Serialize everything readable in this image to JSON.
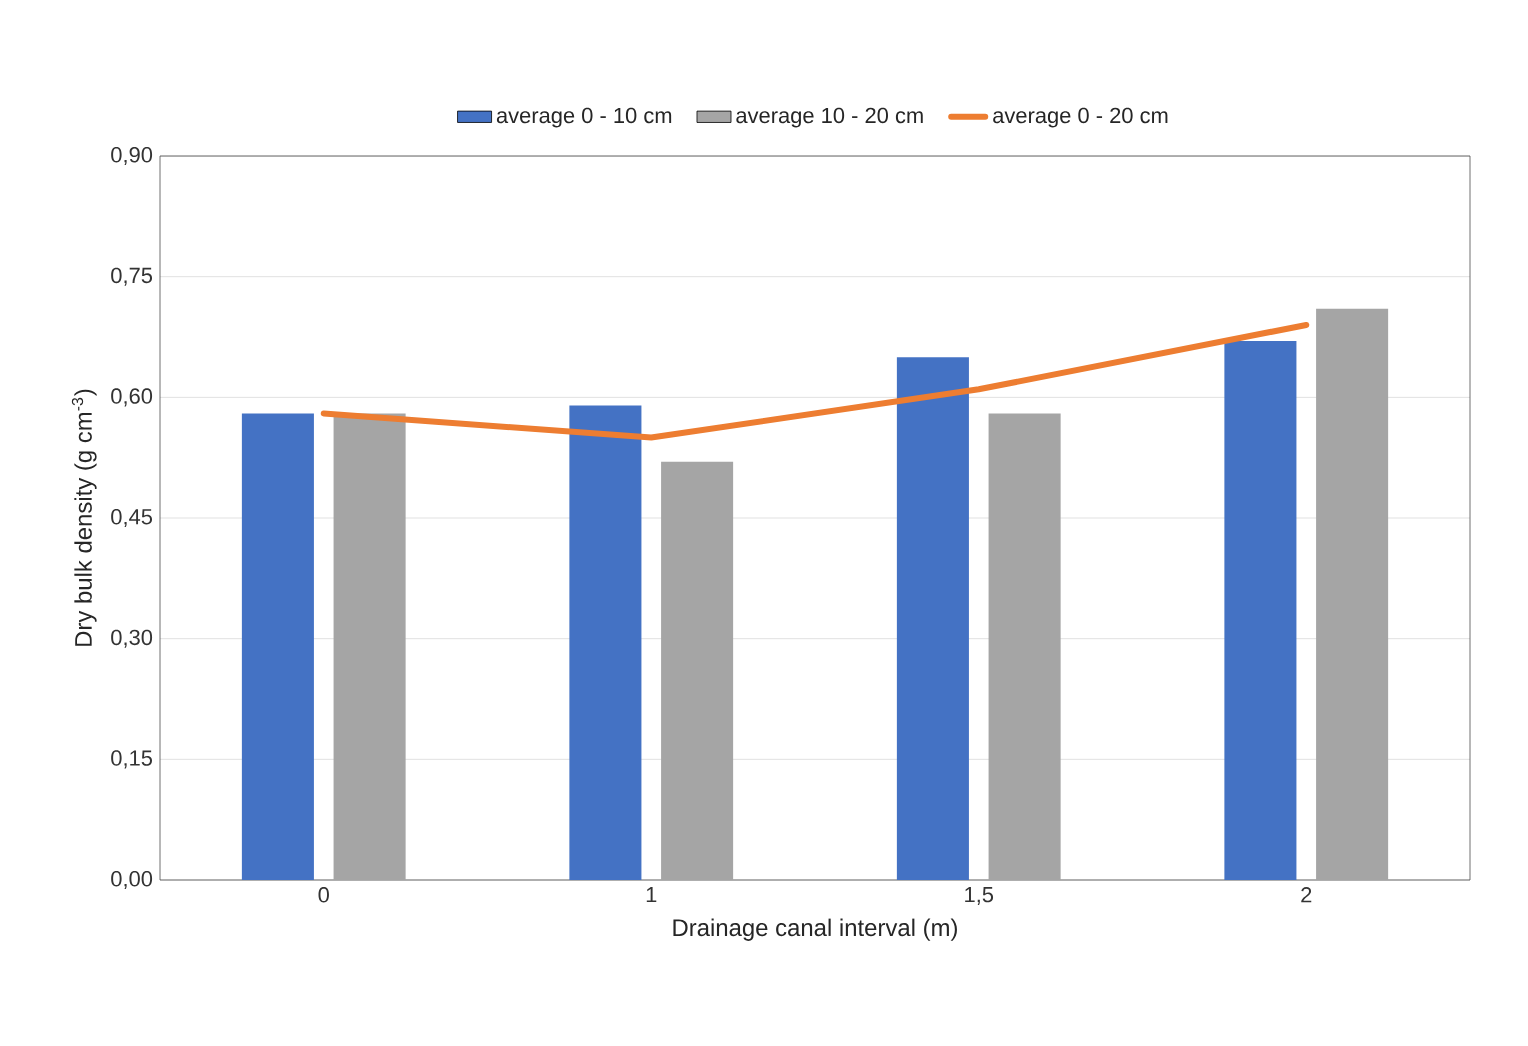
{
  "chart_data": {
    "type": "bar",
    "xlabel": "Drainage canal interval (m)",
    "ylabel": "Dry bulk density (g cm$^{-3}$)",
    "categories": [
      "0",
      "1",
      "1,5",
      "2"
    ],
    "series": [
      {
        "name": "average 0 - 10 cm",
        "color": "#4472c4",
        "values": [
          0.58,
          0.59,
          0.65,
          0.67
        ]
      },
      {
        "name": "average 10 - 20 cm",
        "color": "#a5a5a5",
        "values": [
          0.58,
          0.52,
          0.58,
          0.71
        ]
      },
      {
        "name": "average 0 - 20 cm",
        "type": "line",
        "color": "#ed7d31",
        "values": [
          0.58,
          0.55,
          0.61,
          0.69
        ]
      }
    ],
    "ylim": [
      0,
      0.9
    ],
    "yticks": [
      {
        "value": 0,
        "label": "0,00"
      },
      {
        "value": 0.15,
        "label": "0,15"
      },
      {
        "value": 0.3,
        "label": "0,30"
      },
      {
        "value": 0.45,
        "label": "0,45"
      },
      {
        "value": 0.6,
        "label": "0,60"
      },
      {
        "value": 0.75,
        "label": "0,75"
      },
      {
        "value": 0.9,
        "label": "0,90"
      }
    ],
    "grid": "y",
    "legend": "top"
  }
}
